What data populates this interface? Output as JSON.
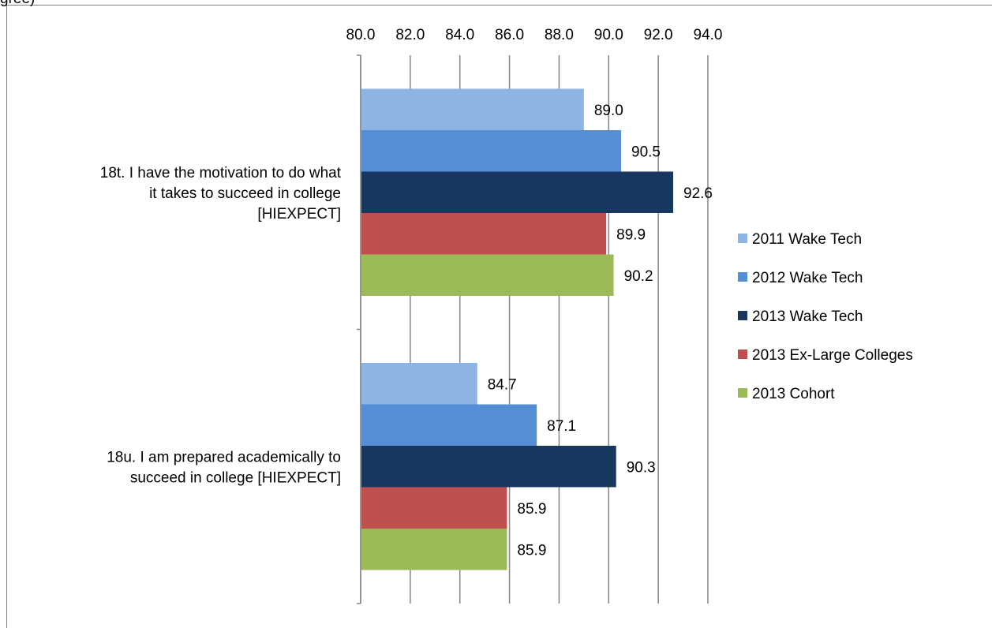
{
  "stray_text": "gree)",
  "chart_data": {
    "type": "bar",
    "orientation": "horizontal",
    "title": "",
    "xlabel": "",
    "ylabel": "",
    "xlim": [
      80,
      94
    ],
    "x_ticks": [
      "80.0",
      "82.0",
      "84.0",
      "86.0",
      "88.0",
      "90.0",
      "92.0",
      "94.0"
    ],
    "gridlines": true,
    "legend_position": "right",
    "categories": [
      [
        "18t. I have the motivation to do what",
        "it takes to succeed in college",
        "[HIEXPECT]"
      ],
      [
        "18u. I am prepared academically to",
        "succeed in college [HIEXPECT]"
      ]
    ],
    "series": [
      {
        "name": "2011 Wake Tech",
        "color": "#8EB4E3",
        "values": [
          89.0,
          84.7
        ],
        "labels": [
          "89.0",
          "84.7"
        ]
      },
      {
        "name": "2012 Wake Tech",
        "color": "#558ED5",
        "values": [
          90.5,
          87.1
        ],
        "labels": [
          "90.5",
          "87.1"
        ]
      },
      {
        "name": "2013 Wake Tech",
        "color": "#17375E",
        "values": [
          92.6,
          90.3
        ],
        "labels": [
          "92.6",
          "90.3"
        ]
      },
      {
        "name": "2013 Ex-Large Colleges",
        "color": "#C0504D",
        "values": [
          89.9,
          85.9
        ],
        "labels": [
          "89.9",
          "85.9"
        ]
      },
      {
        "name": "2013 Cohort",
        "color": "#9BBB59",
        "values": [
          90.2,
          85.9
        ],
        "labels": [
          "90.2",
          "85.9"
        ]
      }
    ]
  }
}
